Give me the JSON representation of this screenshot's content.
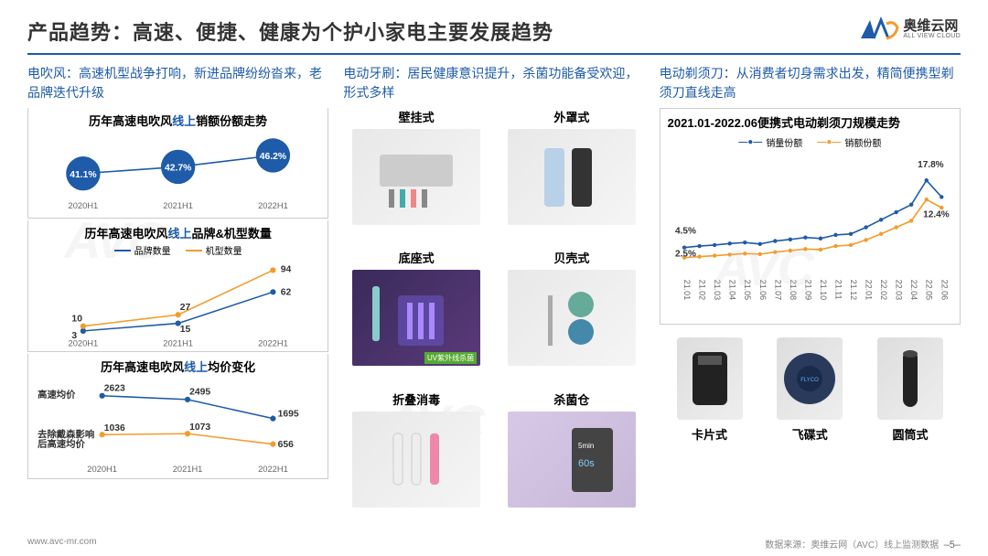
{
  "header": {
    "title": "产品趋势：高速、便捷、健康为个护小家电主要发展趋势",
    "logo_cn": "奥维云网",
    "logo_en": "ALL VIEW CLOUD"
  },
  "col1": {
    "heading": "电吹风：高速机型战争打响，新进品牌纷纷沓来，老品牌迭代升级",
    "chart1": {
      "title_pre": "历年高速电吹风",
      "title_blue": "线上",
      "title_post": "销额份额走势",
      "categories": [
        "2020H1",
        "2021H1",
        "2022H1"
      ],
      "values": [
        41.1,
        42.7,
        46.2
      ],
      "value_labels": [
        "41.1%",
        "42.7%",
        "46.2%"
      ],
      "color": "#1e5ba8",
      "marker_radius": 16
    },
    "chart2": {
      "title_pre": "历年高速电吹风",
      "title_blue": "线上",
      "title_post": "品牌&机型数量",
      "legend": [
        {
          "label": "品牌数量",
          "color": "#1e5ba8"
        },
        {
          "label": "机型数量",
          "color": "#f39c2c"
        }
      ],
      "categories": [
        "2020H1",
        "2021H1",
        "2022H1"
      ],
      "series_brand": [
        3,
        15,
        62
      ],
      "series_model": [
        10,
        27,
        94
      ],
      "brand_color": "#1e5ba8",
      "model_color": "#f39c2c"
    },
    "chart3": {
      "title_pre": "历年高速电吹风",
      "title_blue": "线上",
      "title_post": "均价变化",
      "left_label_top": "高速均价",
      "left_label_bot": "去除戴森影响后高速均价",
      "categories": [
        "2020H1",
        "2021H1",
        "2022H1"
      ],
      "series_hi": [
        2623,
        2495,
        1695
      ],
      "series_lo": [
        1036,
        1073,
        656
      ],
      "hi_color": "#1e5ba8",
      "lo_color": "#f39c2c"
    }
  },
  "col2": {
    "heading": "电动牙刷：居民健康意识提升，杀菌功能备受欢迎，形式多样",
    "types": [
      "壁挂式",
      "外罩式",
      "底座式",
      "贝壳式",
      "折叠消毒",
      "杀菌仓"
    ],
    "uv_caption": "UV紫外线杀菌"
  },
  "col3": {
    "heading": "电动剃须刀：从消费者切身需求出发，精简便携型剃须刀直线走高",
    "chart": {
      "title": "2021.01-2022.06便携式电动剃须刀规模走势",
      "legend": [
        {
          "label": "销量份额",
          "color": "#1e5ba8"
        },
        {
          "label": "销额份额",
          "color": "#f39c2c"
        }
      ],
      "x_labels": [
        "21.01",
        "21.02",
        "21.03",
        "21.04",
        "21.05",
        "21.06",
        "21.07",
        "21.08",
        "21.09",
        "21.10",
        "21.11",
        "21.12",
        "22.01",
        "22.02",
        "22.03",
        "22.04",
        "22.05",
        "22.06"
      ],
      "series_volume": [
        4.5,
        4.8,
        5.0,
        5.3,
        5.5,
        5.2,
        5.8,
        6.1,
        6.5,
        6.3,
        7.0,
        7.2,
        8.5,
        10.0,
        11.5,
        13.0,
        17.8,
        14.5
      ],
      "series_value": [
        2.5,
        2.7,
        2.9,
        3.1,
        3.3,
        3.2,
        3.6,
        3.9,
        4.2,
        4.1,
        4.8,
        5.0,
        6.0,
        7.2,
        8.5,
        9.8,
        14.0,
        12.4
      ],
      "callout_start_vol": "4.5%",
      "callout_start_val": "2.5%",
      "callout_peak_vol": "17.8%",
      "callout_end_val": "12.4%",
      "vol_color": "#1e5ba8",
      "val_color": "#f39c2c",
      "ylim": [
        0,
        20
      ]
    },
    "razor_types": [
      "卡片式",
      "飞碟式",
      "圆筒式"
    ]
  },
  "footer": {
    "url": "www.avc-mr.com",
    "source": "数据来源：奥维云网（AVC）线上监测数据",
    "page": "–5–"
  },
  "watermark": "AVC"
}
